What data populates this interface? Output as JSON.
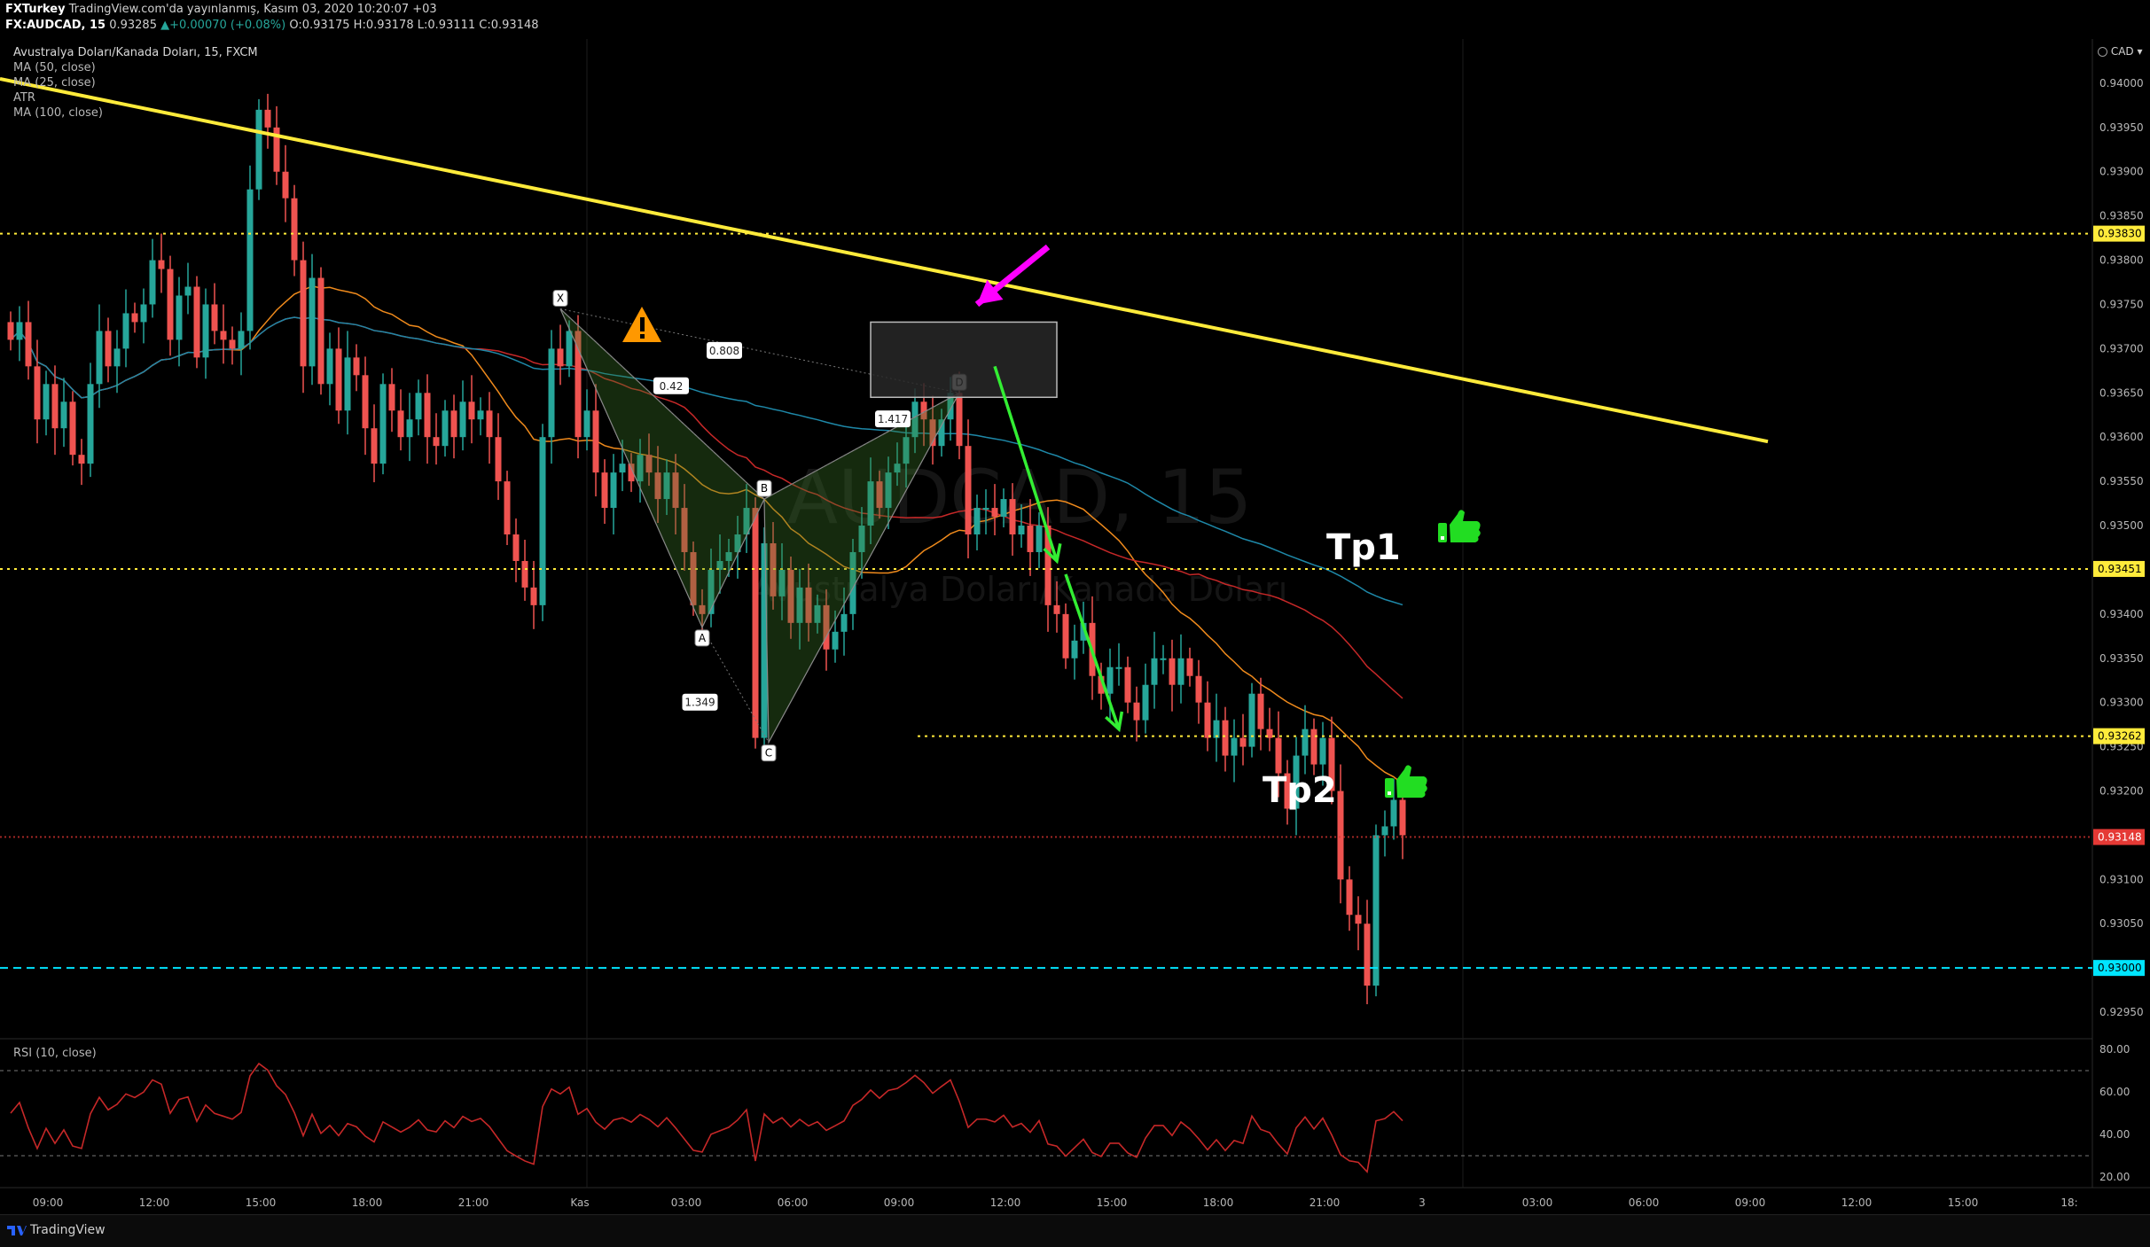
{
  "header": {
    "publisher": "FXTurkey",
    "published_text": "TradingView.com'da yayınlanmış, Kasım 03, 2020 10:20:07 +03",
    "symbol": "FX:AUDCAD, 15",
    "last": "0.93285",
    "change": "+0.00070 (+0.08%)",
    "open": "O:0.93175",
    "high": "H:0.93178",
    "low": "L:0.93111",
    "close": "C:0.93148"
  },
  "legend": {
    "instrument": "Avustralya Doları/Kanada Doları, 15, FXCM",
    "indicators": [
      "MA (50, close)",
      "MA (25, close)",
      "ATR",
      "MA (100, close)"
    ]
  },
  "watermark": {
    "symbol": "AUDCAD, 15",
    "name": "Avustralya Doları/Kanada Doları"
  },
  "price_axis": {
    "currency": "CAD",
    "ticks": [
      "0.94000",
      "0.93950",
      "0.93900",
      "0.93850",
      "0.93800",
      "0.93750",
      "0.93700",
      "0.93650",
      "0.93600",
      "0.93550",
      "0.93500",
      "0.93450",
      "0.93400",
      "0.93350",
      "0.93300",
      "0.93250",
      "0.93200",
      "0.93150",
      "0.93100",
      "0.93050",
      "0.93000",
      "0.92950"
    ],
    "highlight_labels": [
      {
        "value": "0.93830",
        "color": "#ffeb3b"
      },
      {
        "value": "0.93451",
        "color": "#ffeb3b"
      },
      {
        "value": "0.93262",
        "color": "#ffeb3b"
      },
      {
        "value": "0.93148",
        "color": "#e53935"
      },
      {
        "value": "0.93000",
        "color": "#00e5ff"
      }
    ]
  },
  "rsi": {
    "label": "RSI (10, close)",
    "ticks": [
      "80.00",
      "60.00",
      "40.00",
      "20.00"
    ]
  },
  "time_axis": {
    "labels": [
      "09:00",
      "12:00",
      "15:00",
      "18:00",
      "21:00",
      "Kas",
      "03:00",
      "06:00",
      "09:00",
      "12:00",
      "15:00",
      "18:00",
      "21:00",
      "3",
      "03:00",
      "06:00",
      "09:00",
      "12:00",
      "15:00",
      "18:"
    ]
  },
  "pattern": {
    "points": [
      "X",
      "A",
      "B",
      "C",
      "D"
    ],
    "ratios": [
      "0.808",
      "0.42",
      "1.417",
      "1.349"
    ]
  },
  "annotations": {
    "tp1": "Tp1",
    "tp2": "Tp2"
  },
  "footer": {
    "brand": "TradingView"
  },
  "colors": {
    "up": "#26a69a",
    "down": "#ef5350",
    "trendline": "#ffeb3b",
    "ma_red": "#c62828",
    "ma_orange": "#ef8a1c",
    "ma_blue": "#1e88a8",
    "arrow_green": "#33ee33",
    "arrow_magenta": "#ff00ff",
    "rsi": "#c62828"
  },
  "chart_data": {
    "type": "candlestick",
    "symbol": "FX:AUDCAD",
    "timeframe": "15",
    "ylim": [
      0.9292,
      0.9405
    ],
    "rsi_ylim": [
      15,
      85
    ],
    "horizontal_levels": [
      0.9383,
      0.93451,
      0.93262,
      0.93148,
      0.93
    ],
    "trendline": [
      [
        0,
        0.94005
      ],
      [
        198,
        0.93595
      ]
    ],
    "harmonic_pattern": {
      "X": [
        62,
        0.93745
      ],
      "A": [
        78,
        0.93385
      ],
      "B": [
        85,
        0.9353
      ],
      "C": [
        85.5,
        0.93255
      ],
      "D": [
        107,
        0.9365
      ]
    },
    "entry_zone": {
      "x": [
        97,
        118
      ],
      "y": [
        0.93645,
        0.9373
      ]
    },
    "arrows": [
      {
        "color": "green",
        "from": [
          111,
          0.9368
        ],
        "to": [
          118,
          0.9346
        ]
      },
      {
        "color": "green",
        "from": [
          119,
          0.93445
        ],
        "to": [
          125,
          0.9327
        ]
      },
      {
        "color": "magenta",
        "from": [
          117,
          0.93815
        ],
        "to": [
          109,
          0.9375
        ]
      }
    ],
    "close_series": [
      0.9371,
      0.9373,
      0.9368,
      0.9362,
      0.9366,
      0.9361,
      0.9364,
      0.9358,
      0.9357,
      0.9366,
      0.9372,
      0.9368,
      0.937,
      0.9374,
      0.9373,
      0.9375,
      0.938,
      0.9379,
      0.9371,
      0.9376,
      0.9377,
      0.9369,
      0.9375,
      0.9372,
      0.9371,
      0.937,
      0.9372,
      0.9388,
      0.9397,
      0.9395,
      0.939,
      0.9387,
      0.938,
      0.9368,
      0.9378,
      0.9366,
      0.937,
      0.9363,
      0.9369,
      0.9367,
      0.9361,
      0.9357,
      0.9366,
      0.9363,
      0.936,
      0.9362,
      0.9365,
      0.936,
      0.9359,
      0.9363,
      0.936,
      0.9364,
      0.9362,
      0.9363,
      0.936,
      0.9355,
      0.9349,
      0.9346,
      0.9343,
      0.9341,
      0.936,
      0.937,
      0.9368,
      0.9372,
      0.936,
      0.9363,
      0.9356,
      0.9352,
      0.9356,
      0.9357,
      0.9355,
      0.9358,
      0.9356,
      0.9353,
      0.9356,
      0.9352,
      0.9347,
      0.9341,
      0.934,
      0.9345,
      0.9346,
      0.9347,
      0.9349,
      0.9352,
      0.9326,
      0.9348,
      0.9342,
      0.9345,
      0.9339,
      0.9343,
      0.9339,
      0.9341,
      0.9336,
      0.9338,
      0.934,
      0.9347,
      0.935,
      0.9355,
      0.9352,
      0.9356,
      0.9357,
      0.936,
      0.9364,
      0.9362,
      0.9359,
      0.9362,
      0.9365,
      0.9359,
      0.9349,
      0.9352,
      0.9352,
      0.9351,
      0.9353,
      0.9349,
      0.935,
      0.9347,
      0.935,
      0.9341,
      0.934,
      0.9335,
      0.9337,
      0.9339,
      0.9333,
      0.9331,
      0.9334,
      0.9334,
      0.933,
      0.9328,
      0.9332,
      0.9335,
      0.9335,
      0.9332,
      0.9335,
      0.9333,
      0.933,
      0.9326,
      0.9328,
      0.9324,
      0.9326,
      0.9325,
      0.9331,
      0.9327,
      0.9326,
      0.9322,
      0.9318,
      0.9324,
      0.9327,
      0.9323,
      0.9326,
      0.932,
      0.931,
      0.9306,
      0.9305,
      0.9298,
      0.9315,
      0.9316,
      0.9319,
      0.9315
    ]
  }
}
